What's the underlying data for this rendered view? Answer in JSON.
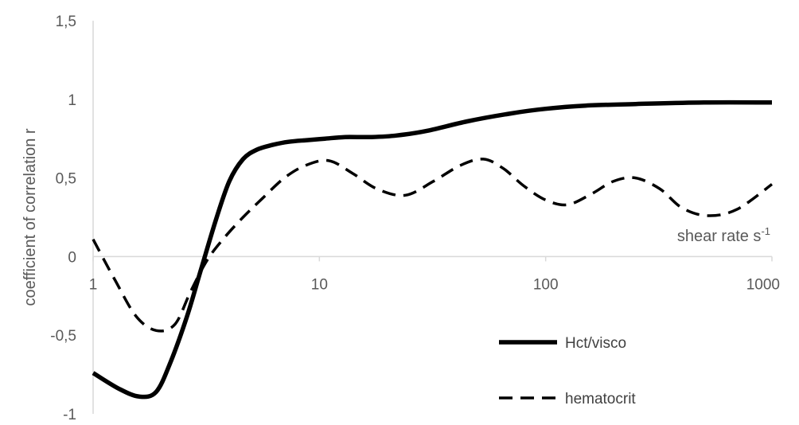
{
  "chart_data": {
    "type": "line",
    "xscale": "log",
    "xlim": [
      1,
      1000
    ],
    "ylim": [
      -1,
      1.5
    ],
    "ylabel": "coefficient of correlation r",
    "xlabel_main": "shear rate s",
    "xlabel_superscript": "-1",
    "xticks": [
      {
        "value": 1,
        "label": "1"
      },
      {
        "value": 10,
        "label": "10"
      },
      {
        "value": 100,
        "label": "100"
      },
      {
        "value": 1000,
        "label": "1000"
      }
    ],
    "yticks": [
      {
        "value": 1.5,
        "label": "1,5"
      },
      {
        "value": 1,
        "label": "1"
      },
      {
        "value": 0.5,
        "label": "0,5"
      },
      {
        "value": 0,
        "label": "0"
      },
      {
        "value": -0.5,
        "label": "-0,5"
      },
      {
        "value": -1,
        "label": "-1"
      }
    ],
    "grid": false,
    "legend_position": "bottom-right",
    "colors": {
      "axis": "#d9d9d9",
      "text": "#595959",
      "series": "#000000"
    },
    "series": [
      {
        "name": "Hct/visco",
        "style": "solid",
        "x": [
          1,
          1.3,
          1.6,
          1.9,
          2.2,
          2.6,
          3.0,
          3.5,
          4.0,
          4.6,
          5.3,
          6.2,
          7.3,
          8.7,
          10.6,
          13,
          17,
          22,
          30,
          45,
          70,
          100,
          150,
          250,
          500,
          1000
        ],
        "y": [
          -0.74,
          -0.84,
          -0.89,
          -0.86,
          -0.67,
          -0.38,
          -0.08,
          0.24,
          0.48,
          0.62,
          0.68,
          0.71,
          0.73,
          0.74,
          0.75,
          0.76,
          0.76,
          0.77,
          0.8,
          0.86,
          0.91,
          0.94,
          0.96,
          0.97,
          0.98,
          0.98
        ]
      },
      {
        "name": "hematocrit",
        "style": "dashed",
        "x": [
          1,
          1.25,
          1.55,
          1.9,
          2.3,
          2.7,
          3.2,
          3.8,
          4.6,
          5.6,
          7,
          8.7,
          11,
          14,
          18,
          24,
          32,
          42,
          53,
          65,
          80,
          100,
          125,
          160,
          200,
          250,
          320,
          400,
          520,
          700,
          1000
        ],
        "y": [
          0.11,
          -0.15,
          -0.38,
          -0.47,
          -0.43,
          -0.22,
          -0.02,
          0.12,
          0.25,
          0.37,
          0.5,
          0.58,
          0.61,
          0.53,
          0.43,
          0.39,
          0.48,
          0.58,
          0.62,
          0.56,
          0.45,
          0.36,
          0.33,
          0.4,
          0.48,
          0.5,
          0.43,
          0.31,
          0.26,
          0.3,
          0.46
        ]
      }
    ]
  }
}
